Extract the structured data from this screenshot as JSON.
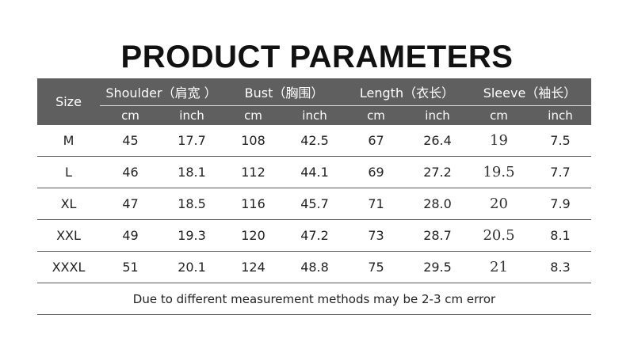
{
  "title": "PRODUCT PARAMETERS",
  "table": {
    "size_header": "Size",
    "groups": [
      {
        "label": "Shoulder（肩宽 ）"
      },
      {
        "label": "Bust（胸围）"
      },
      {
        "label": "Length（衣长）"
      },
      {
        "label": "Sleeve（袖长）"
      }
    ],
    "units": [
      "cm",
      "inch",
      "cm",
      "inch",
      "cm",
      "inch",
      "cm",
      "inch"
    ],
    "rows": [
      {
        "size": "M",
        "values": [
          "45",
          "17.7",
          "108",
          "42.5",
          "67",
          "26.4",
          "19",
          "7.5"
        ]
      },
      {
        "size": "L",
        "values": [
          "46",
          "18.1",
          "112",
          "44.1",
          "69",
          "27.2",
          "19.5",
          "7.7"
        ]
      },
      {
        "size": "XL",
        "values": [
          "47",
          "18.5",
          "116",
          "45.7",
          "71",
          "28.0",
          "20",
          "7.9"
        ]
      },
      {
        "size": "XXL",
        "values": [
          "49",
          "19.3",
          "120",
          "47.2",
          "73",
          "28.7",
          "20.5",
          "8.1"
        ]
      },
      {
        "size": "XXXL",
        "values": [
          "51",
          "20.1",
          "124",
          "48.8",
          "75",
          "29.5",
          "21",
          "8.3"
        ]
      }
    ],
    "note": "Due to different measurement methods may be 2-3 cm error"
  },
  "colors": {
    "header_bg": "#5f5f5f",
    "header_text": "#ffffff",
    "row_line": "#555555"
  }
}
